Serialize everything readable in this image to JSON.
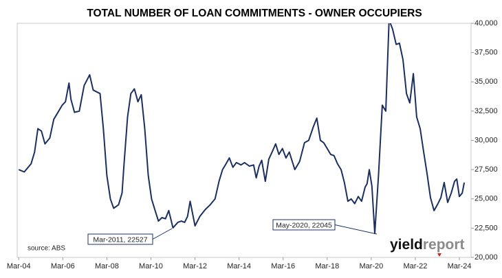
{
  "chart_data": {
    "type": "line",
    "title": "TOTAL NUMBER OF LOAN COMMITMENTS - OWNER OCCUPIERS",
    "source": "source: ABS",
    "logo": [
      "yield",
      "report"
    ],
    "annotations": [
      "Mar-2011, 22527",
      "May-2020, 22045"
    ],
    "xlim": [
      2004.1,
      2024.7
    ],
    "xticks": [
      {
        "value": 2004.17,
        "label": "Mar-04"
      },
      {
        "value": 2006.17,
        "label": "Mar-06"
      },
      {
        "value": 2008.17,
        "label": "Mar-08"
      },
      {
        "value": 2010.17,
        "label": "Mar-10"
      },
      {
        "value": 2012.17,
        "label": "Mar-12"
      },
      {
        "value": 2014.17,
        "label": "Mar-14"
      },
      {
        "value": 2016.17,
        "label": "Mar-16"
      },
      {
        "value": 2018.17,
        "label": "Mar-18"
      },
      {
        "value": 2020.17,
        "label": "Mar-20"
      },
      {
        "value": 2022.17,
        "label": "Mar-22"
      },
      {
        "value": 2024.17,
        "label": "Mar-24"
      }
    ],
    "ylim": [
      20000,
      40000
    ],
    "yticks": [
      {
        "value": 20000,
        "label": "20,000"
      },
      {
        "value": 22500,
        "label": "22,500"
      },
      {
        "value": 25000,
        "label": "25,000"
      },
      {
        "value": 27500,
        "label": "27,500"
      },
      {
        "value": 30000,
        "label": "30,000"
      },
      {
        "value": 32500,
        "label": "32,500"
      },
      {
        "value": 35000,
        "label": "35,000"
      },
      {
        "value": 37500,
        "label": "37,500"
      },
      {
        "value": 40000,
        "label": "40,000"
      }
    ],
    "grid": false,
    "x": [
      2004.17,
      2004.42,
      2004.73,
      2004.89,
      2005.04,
      2005.2,
      2005.36,
      2005.58,
      2005.76,
      2005.92,
      2006.14,
      2006.29,
      2006.45,
      2006.54,
      2006.7,
      2006.92,
      2007.14,
      2007.39,
      2007.55,
      2007.86,
      2008.01,
      2008.17,
      2008.33,
      2008.48,
      2008.7,
      2008.86,
      2008.95,
      2009.11,
      2009.26,
      2009.42,
      2009.58,
      2009.73,
      2009.89,
      2010.05,
      2010.2,
      2010.36,
      2010.51,
      2010.67,
      2010.83,
      2010.98,
      2011.17,
      2011.39,
      2011.55,
      2011.7,
      2011.83,
      2011.95,
      2012.17,
      2012.39,
      2012.64,
      2012.86,
      2013.08,
      2013.26,
      2013.42,
      2013.58,
      2013.73,
      2013.89,
      2014.05,
      2014.26,
      2014.42,
      2014.64,
      2014.83,
      2014.95,
      2015.08,
      2015.2,
      2015.36,
      2015.52,
      2015.67,
      2015.83,
      2015.98,
      2016.14,
      2016.3,
      2016.45,
      2016.7,
      2016.92,
      2017.14,
      2017.33,
      2017.55,
      2017.7,
      2017.86,
      2018.01,
      2018.17,
      2018.33,
      2018.48,
      2018.64,
      2018.8,
      2018.95,
      2019.11,
      2019.26,
      2019.42,
      2019.58,
      2019.73,
      2019.89,
      2019.98,
      2020.08,
      2020.2,
      2020.33,
      2020.5,
      2020.67,
      2020.83,
      2020.98,
      2021.14,
      2021.3,
      2021.45,
      2021.61,
      2021.77,
      2021.92,
      2022.08,
      2022.23,
      2022.39,
      2022.55,
      2022.7,
      2022.86,
      2023.02,
      2023.17,
      2023.33,
      2023.48,
      2023.64,
      2023.8,
      2023.95,
      2024.05,
      2024.17,
      2024.3,
      2024.39
    ],
    "series": [
      {
        "name": "Loan commitments",
        "color": "#1b2f5e",
        "values": [
          27500,
          27300,
          28000,
          29000,
          31000,
          30800,
          29700,
          30200,
          31800,
          32300,
          33000,
          33300,
          34900,
          33500,
          32400,
          32500,
          34700,
          35600,
          34300,
          34000,
          31000,
          27000,
          25000,
          24200,
          24500,
          25500,
          28000,
          32000,
          34000,
          34400,
          33300,
          33900,
          31000,
          27000,
          25000,
          24000,
          23100,
          23400,
          23300,
          24000,
          22527,
          23000,
          23100,
          23000,
          23500,
          24800,
          22700,
          23500,
          24100,
          24500,
          25000,
          26500,
          27500,
          28000,
          28500,
          27700,
          28100,
          27900,
          28100,
          27800,
          27900,
          26800,
          27800,
          28300,
          26500,
          28400,
          29000,
          29700,
          28800,
          29300,
          28500,
          29000,
          27500,
          28200,
          29800,
          30000,
          31200,
          31900,
          30000,
          29800,
          29300,
          28800,
          28700,
          28000,
          27500,
          26400,
          24800,
          25000,
          24600,
          25200,
          24800,
          26000,
          26300,
          27500,
          26100,
          22045,
          27000,
          33000,
          32500,
          40300,
          39500,
          38200,
          38300,
          36900,
          34000,
          33200,
          35700,
          32000,
          31000,
          29000,
          27200,
          25100,
          24000,
          24500,
          25100,
          26400,
          24700,
          25500,
          26500,
          26700,
          25200,
          25500,
          26400
        ]
      }
    ]
  }
}
